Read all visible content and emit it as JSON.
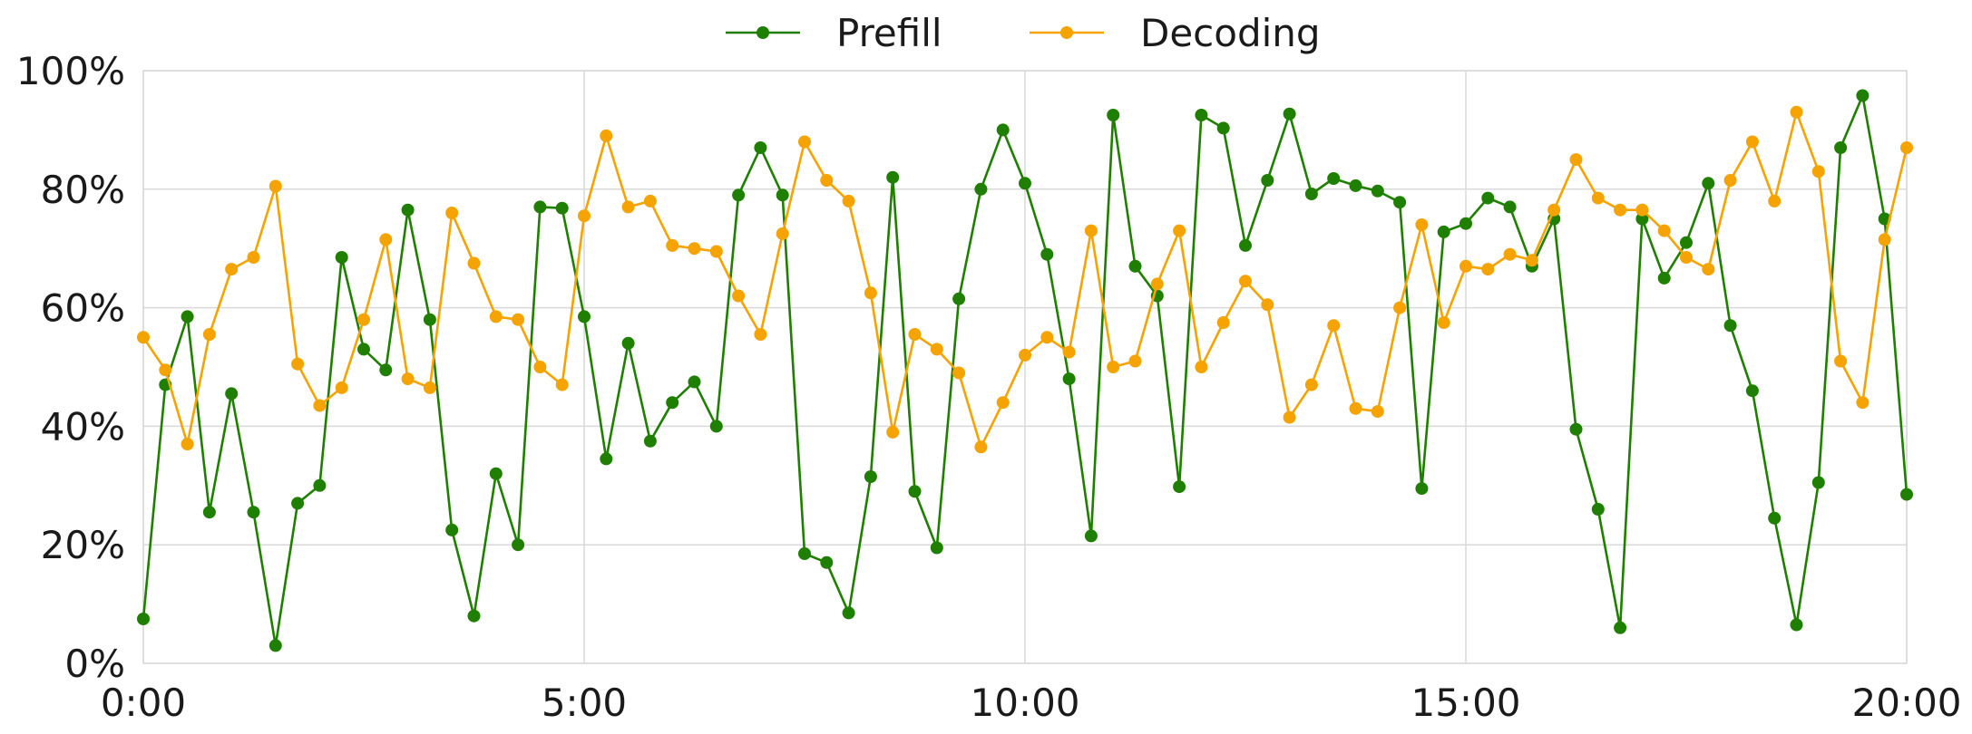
{
  "chart_data": {
    "type": "line",
    "title": "",
    "xlabel": "",
    "ylabel": "",
    "x_tick_labels": [
      "0:00",
      "5:00",
      "10:00",
      "15:00",
      "20:00"
    ],
    "y_tick_labels": [
      "0%",
      "20%",
      "40%",
      "60%",
      "80%",
      "100%"
    ],
    "x_unit": "minutes",
    "xlim": [
      0,
      20
    ],
    "ylim": [
      0,
      100
    ],
    "grid": true,
    "legend_position": "top-center",
    "series": [
      {
        "name": "Prefill",
        "color": "#1f7f00",
        "values": [
          7.5,
          47,
          58.5,
          25.5,
          45.5,
          25.5,
          3,
          27,
          30,
          68.5,
          53,
          49.5,
          76.5,
          58,
          22.5,
          8,
          32,
          20,
          77,
          76.8,
          58.5,
          34.5,
          54,
          37.5,
          44,
          47.5,
          40,
          79,
          87,
          79,
          18.5,
          17,
          8.5,
          31.5,
          82,
          29,
          19.5,
          61.5,
          80,
          90,
          81,
          69,
          48,
          21.5,
          92.5,
          67,
          62,
          29.8,
          92.5,
          90.3,
          70.5,
          81.5,
          92.7,
          79.2,
          81.8,
          80.6,
          79.7,
          77.8,
          29.5,
          72.8,
          74.2,
          78.5,
          77,
          67,
          75,
          39.5,
          26,
          6,
          75,
          65,
          71,
          81,
          57,
          46,
          24.5,
          6.5,
          30.5,
          87,
          95.8,
          75,
          28.5
        ]
      },
      {
        "name": "Decoding",
        "color": "#f5a300",
        "values": [
          55,
          49.5,
          37,
          55.5,
          66.5,
          68.5,
          80.5,
          50.5,
          43.5,
          46.5,
          58,
          71.5,
          48,
          46.5,
          76,
          67.5,
          58.5,
          58,
          50,
          47,
          75.5,
          89,
          77,
          78,
          70.5,
          70,
          69.5,
          62,
          55.5,
          72.5,
          88,
          81.5,
          78,
          62.5,
          39,
          55.5,
          53,
          49,
          36.5,
          44,
          52,
          55,
          52.5,
          73,
          50,
          51,
          64,
          73,
          50,
          57.5,
          64.5,
          60.5,
          41.5,
          47,
          57,
          43,
          42.5,
          60,
          74,
          57.5,
          67,
          66.5,
          69,
          68,
          76.5,
          85,
          78.5,
          76.5,
          76.5,
          73,
          68.5,
          66.5,
          81.5,
          88,
          78,
          93,
          83,
          51,
          44,
          71.5,
          87
        ]
      }
    ]
  }
}
